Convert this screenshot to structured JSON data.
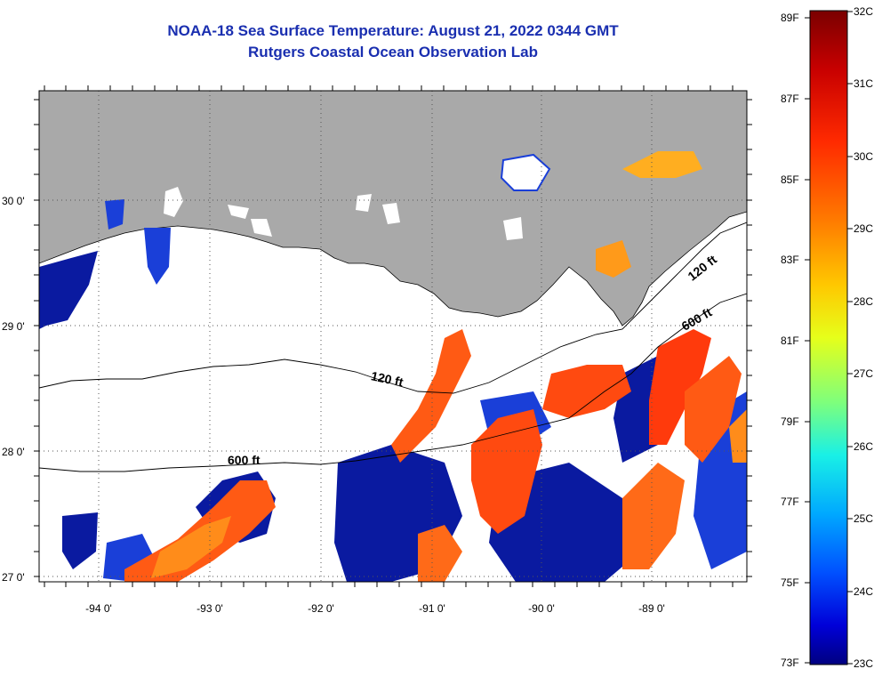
{
  "title": {
    "line1": "NOAA-18 Sea Surface Temperature:  August 21, 2022 0344 GMT",
    "line2": "Rutgers Coastal Ocean Observation Lab"
  },
  "map": {
    "lat_ticks": [
      {
        "label": "30 0'",
        "value": 30
      },
      {
        "label": "29 0'",
        "value": 29
      },
      {
        "label": "28 0'",
        "value": 28
      },
      {
        "label": "27 0'",
        "value": 27
      }
    ],
    "lon_ticks": [
      {
        "label": "-94 0'",
        "value": -94
      },
      {
        "label": "-93 0'",
        "value": -93
      },
      {
        "label": "-92 0'",
        "value": -92
      },
      {
        "label": "-91 0'",
        "value": -91
      },
      {
        "label": "-90 0'",
        "value": -90
      },
      {
        "label": "-89 0'",
        "value": -89
      }
    ],
    "contour_labels": [
      {
        "text": "120 ft",
        "id": "contour-120-west"
      },
      {
        "text": "120 ft",
        "id": "contour-120-east"
      },
      {
        "text": "600 ft",
        "id": "contour-600-west"
      },
      {
        "text": "600 ft",
        "id": "contour-600-east"
      }
    ],
    "colors": {
      "land": "#a9a9a9",
      "cloud": "#ffffff",
      "grid": "#555555"
    }
  },
  "colorbar": {
    "fahrenheit": [
      "89F",
      "87F",
      "85F",
      "83F",
      "81F",
      "79F",
      "77F",
      "75F",
      "73F"
    ],
    "celsius": [
      "32C",
      "31C",
      "30C",
      "29C",
      "28C",
      "27C",
      "26C",
      "25C",
      "24C",
      "23C"
    ],
    "gradient_stops": [
      "#7a0000",
      "#c80000",
      "#ff2a00",
      "#ff7a00",
      "#ffc800",
      "#e6ff1a",
      "#7dff7d",
      "#19f0e6",
      "#00a8ff",
      "#0050ff",
      "#0000d8",
      "#000080"
    ]
  }
}
